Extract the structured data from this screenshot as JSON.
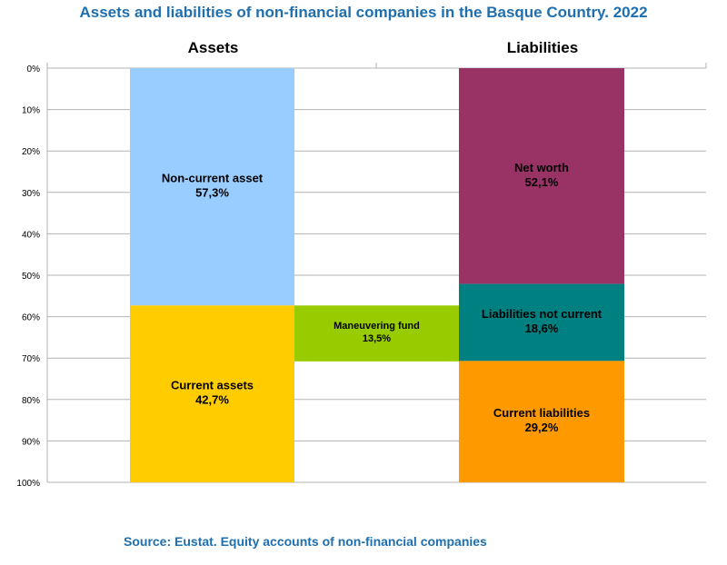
{
  "chart_data": {
    "type": "bar",
    "title": "Assets and liabilities of non-financial companies in the Basque Country. 2022",
    "source": "Source: Eustat. Equity accounts of non-financial companies",
    "categories": [
      "Assets",
      "Liabilities"
    ],
    "y_ticks": [
      "0%",
      "10%",
      "20%",
      "30%",
      "40%",
      "50%",
      "60%",
      "70%",
      "80%",
      "90%",
      "100%"
    ],
    "ylim": [
      0,
      100
    ],
    "grid": true,
    "segments": [
      {
        "column": 0,
        "label": "Non-current asset",
        "value_label": "57,3%",
        "start": 0,
        "end": 57.3,
        "color": "#99ccff"
      },
      {
        "column": 0,
        "label": "Current assets",
        "value_label": "42,7%",
        "start": 57.3,
        "end": 100,
        "color": "#ffcc00"
      },
      {
        "column": 1,
        "label": "Net worth",
        "value_label": "52,1%",
        "start": 0,
        "end": 52.1,
        "color": "#993366"
      },
      {
        "column": 1,
        "label": "Liabilities not current",
        "value_label": "18,6%",
        "start": 52.1,
        "end": 70.7,
        "color": "#008080"
      },
      {
        "column": 1,
        "label": "Current liabilities",
        "value_label": "29,2%",
        "start": 70.7,
        "end": 100,
        "color": "#ff9900"
      }
    ],
    "bridge": {
      "label": "Maneuvering fund",
      "value_label": "13,5%",
      "start": 57.3,
      "end": 70.8,
      "color": "#99cc00"
    }
  }
}
